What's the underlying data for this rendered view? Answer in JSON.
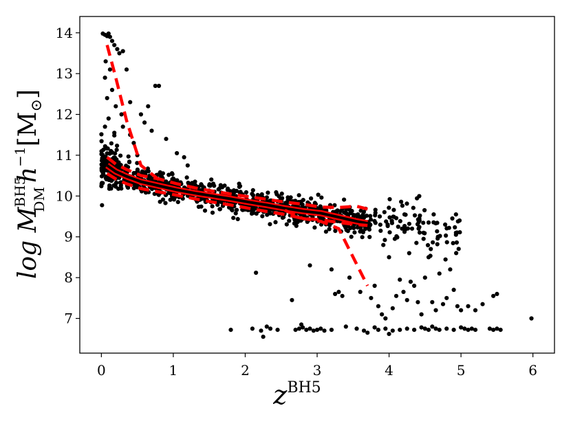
{
  "chart_data": {
    "type": "scatter",
    "xlabel": "z",
    "xlabel_sup": "BH5",
    "ylabel_main": "log M",
    "ylabel_sup": "BH5",
    "ylabel_sub": "DM",
    "ylabel_unit": "h",
    "ylabel_unit_sup": "−1",
    "ylabel_bracket": "[M",
    "ylabel_sun": "⊙",
    "ylabel_close": "]",
    "xlim": [
      -0.3,
      6.3
    ],
    "ylim": [
      6.15,
      14.4
    ],
    "xticks": [
      0,
      1,
      2,
      3,
      4,
      5,
      6
    ],
    "yticks": [
      7,
      8,
      9,
      10,
      11,
      12,
      13,
      14
    ],
    "xtick_labels": [
      "0",
      "1",
      "2",
      "3",
      "4",
      "5",
      "6"
    ],
    "ytick_labels": [
      "7",
      "8",
      "9",
      "10",
      "11",
      "12",
      "13",
      "14"
    ],
    "grid": false,
    "colors": {
      "points": "#000000",
      "median": "#000000",
      "percentile": "#ff0000"
    },
    "median_line": {
      "x": [
        0.08,
        0.2,
        0.35,
        0.55,
        0.8,
        1.05,
        1.3,
        1.55,
        1.8,
        2.05,
        2.3,
        2.55,
        2.8,
        3.05,
        3.3,
        3.55,
        3.7
      ],
      "y": [
        10.75,
        10.6,
        10.48,
        10.35,
        10.25,
        10.15,
        10.07,
        10.0,
        9.93,
        9.85,
        9.78,
        9.7,
        9.63,
        9.58,
        9.48,
        9.38,
        9.33
      ]
    },
    "upper_dashed": {
      "x": [
        0.08,
        0.2,
        0.35,
        0.55,
        0.8,
        1.05,
        1.3,
        1.55,
        1.8,
        2.05,
        2.3,
        2.55,
        2.8,
        3.05,
        3.3,
        3.55,
        3.7
      ],
      "y": [
        10.95,
        10.78,
        10.65,
        10.5,
        10.42,
        10.3,
        10.2,
        10.12,
        10.05,
        9.98,
        9.92,
        9.85,
        9.8,
        9.73,
        9.72,
        9.75,
        9.68
      ]
    },
    "lower_dashed": {
      "x": [
        0.08,
        0.2,
        0.35,
        0.55,
        0.8,
        1.05,
        1.3,
        1.55,
        1.8,
        2.05,
        2.3,
        2.55,
        2.8,
        3.05,
        3.3,
        3.55,
        3.7
      ],
      "y": [
        10.55,
        10.42,
        10.3,
        10.18,
        10.1,
        10.02,
        9.93,
        9.85,
        9.78,
        9.7,
        9.62,
        9.55,
        9.45,
        9.42,
        9.35,
        9.3,
        9.28
      ]
    },
    "max_dashed": {
      "x": [
        0.08,
        0.2,
        0.35,
        0.55,
        0.8
      ],
      "y": [
        13.7,
        12.9,
        11.85,
        10.75,
        10.4
      ]
    },
    "min_dashed": {
      "x": [
        2.55,
        2.8,
        3.05,
        3.3,
        3.5,
        3.7
      ],
      "y": [
        9.65,
        9.45,
        9.38,
        9.2,
        8.5,
        7.8
      ]
    },
    "outliers": [
      [
        0.02,
        13.98
      ],
      [
        0.05,
        13.95
      ],
      [
        0.08,
        13.92
      ],
      [
        0.1,
        13.98
      ],
      [
        0.12,
        13.9
      ],
      [
        0.15,
        13.8
      ],
      [
        0.18,
        13.7
      ],
      [
        0.22,
        13.6
      ],
      [
        0.25,
        13.5
      ],
      [
        0.3,
        13.55
      ],
      [
        0.06,
        13.3
      ],
      [
        0.12,
        13.1
      ],
      [
        0.35,
        13.1
      ],
      [
        0.05,
        12.9
      ],
      [
        0.15,
        12.6
      ],
      [
        0.08,
        12.4
      ],
      [
        0.2,
        12.2
      ],
      [
        0.28,
        12.0
      ],
      [
        0.1,
        11.9
      ],
      [
        0.3,
        11.7
      ],
      [
        0.4,
        11.5
      ],
      [
        0.05,
        11.7
      ],
      [
        0.18,
        11.55
      ],
      [
        0.45,
        11.3
      ],
      [
        0.5,
        11.0
      ],
      [
        0.65,
        12.2
      ],
      [
        0.75,
        12.7
      ],
      [
        0.8,
        12.7
      ],
      [
        0.7,
        11.6
      ],
      [
        0.9,
        11.4
      ],
      [
        1.05,
        11.05
      ],
      [
        1.15,
        10.95
      ],
      [
        1.2,
        10.75
      ],
      [
        0.6,
        11.8
      ],
      [
        0.55,
        12.0
      ],
      [
        0.4,
        12.3
      ],
      [
        2.15,
        8.12
      ],
      [
        2.65,
        7.45
      ],
      [
        2.9,
        8.3
      ],
      [
        3.2,
        8.2
      ],
      [
        3.25,
        7.6
      ],
      [
        3.3,
        7.65
      ],
      [
        3.35,
        7.55
      ],
      [
        3.45,
        8.0
      ],
      [
        3.6,
        7.65
      ],
      [
        3.75,
        7.5
      ],
      [
        3.8,
        7.8
      ],
      [
        3.85,
        7.3
      ],
      [
        3.9,
        7.1
      ],
      [
        3.95,
        7.0
      ],
      [
        4.05,
        7.25
      ],
      [
        4.1,
        7.55
      ],
      [
        4.15,
        7.95
      ],
      [
        4.2,
        7.65
      ],
      [
        4.25,
        7.45
      ],
      [
        4.3,
        7.9
      ],
      [
        4.35,
        7.8
      ],
      [
        4.4,
        7.4
      ],
      [
        4.45,
        7.1
      ],
      [
        4.5,
        8.0
      ],
      [
        4.55,
        8.5
      ],
      [
        4.6,
        7.4
      ],
      [
        4.65,
        7.2
      ],
      [
        4.7,
        8.1
      ],
      [
        4.75,
        7.35
      ],
      [
        4.8,
        7.5
      ],
      [
        4.85,
        8.2
      ],
      [
        4.9,
        7.7
      ],
      [
        4.95,
        7.3
      ],
      [
        5.0,
        7.2
      ],
      [
        5.1,
        7.3
      ],
      [
        5.2,
        7.2
      ],
      [
        5.3,
        7.35
      ],
      [
        5.45,
        7.55
      ],
      [
        5.5,
        7.6
      ],
      [
        4.0,
        8.5
      ],
      [
        3.92,
        8.8
      ],
      [
        4.08,
        8.95
      ],
      [
        4.28,
        8.6
      ],
      [
        4.38,
        8.85
      ],
      [
        4.58,
        8.7
      ],
      [
        4.68,
        9.0
      ],
      [
        4.78,
        9.3
      ],
      [
        4.88,
        9.45
      ],
      [
        4.93,
        9.55
      ],
      [
        4.98,
        9.4
      ],
      [
        4.48,
        9.1
      ],
      [
        4.18,
        9.2
      ],
      [
        3.98,
        9.3
      ],
      [
        4.55,
        9.35
      ],
      [
        4.62,
        9.55
      ],
      [
        4.42,
        9.45
      ],
      [
        4.32,
        9.2
      ]
    ],
    "floor_points": [
      [
        1.8,
        6.72
      ],
      [
        2.1,
        6.75
      ],
      [
        2.22,
        6.7
      ],
      [
        2.25,
        6.55
      ],
      [
        2.3,
        6.8
      ],
      [
        2.35,
        6.75
      ],
      [
        2.45,
        6.72
      ],
      [
        2.7,
        6.72
      ],
      [
        2.75,
        6.75
      ],
      [
        2.8,
        6.78
      ],
      [
        2.85,
        6.72
      ],
      [
        2.9,
        6.75
      ],
      [
        2.95,
        6.7
      ],
      [
        3.0,
        6.72
      ],
      [
        3.05,
        6.75
      ],
      [
        3.1,
        6.7
      ],
      [
        3.2,
        6.72
      ],
      [
        3.4,
        6.8
      ],
      [
        3.55,
        6.75
      ],
      [
        3.65,
        6.7
      ],
      [
        3.7,
        6.65
      ],
      [
        3.8,
        6.78
      ],
      [
        3.85,
        6.72
      ],
      [
        3.95,
        6.75
      ],
      [
        4.0,
        6.62
      ],
      [
        4.05,
        6.7
      ],
      [
        4.15,
        6.72
      ],
      [
        4.25,
        6.75
      ],
      [
        4.35,
        6.72
      ],
      [
        4.45,
        6.78
      ],
      [
        4.5,
        6.75
      ],
      [
        4.55,
        6.72
      ],
      [
        4.6,
        6.8
      ],
      [
        4.65,
        6.75
      ],
      [
        4.7,
        6.72
      ],
      [
        4.8,
        6.75
      ],
      [
        4.9,
        6.72
      ],
      [
        5.0,
        6.78
      ],
      [
        5.05,
        6.75
      ],
      [
        5.1,
        6.72
      ],
      [
        5.15,
        6.75
      ],
      [
        5.2,
        6.72
      ],
      [
        5.4,
        6.75
      ],
      [
        5.45,
        6.72
      ],
      [
        5.5,
        6.75
      ],
      [
        5.55,
        6.72
      ],
      [
        5.98,
        7.0
      ],
      [
        2.78,
        6.85
      ]
    ]
  }
}
